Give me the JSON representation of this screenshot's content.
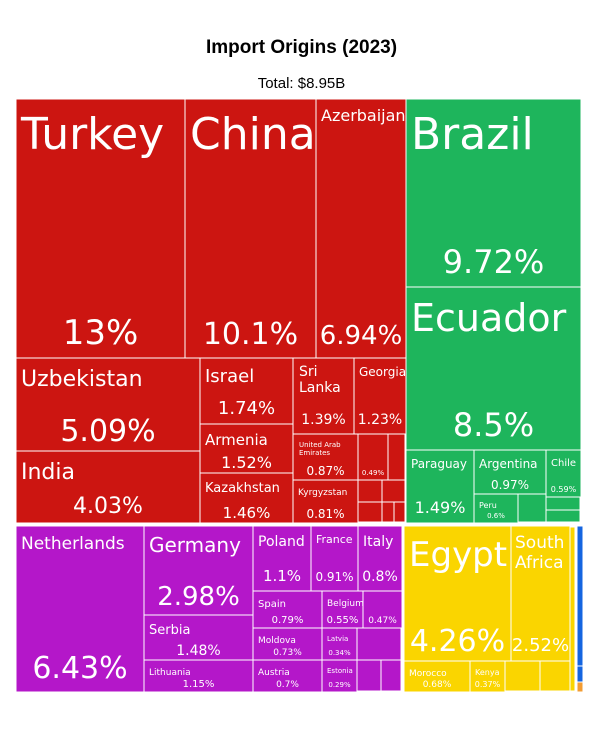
{
  "chart_data": {
    "type": "treemap",
    "title": "Import Origins (2023)",
    "subtitle": "Total: $8.95B",
    "colors": {
      "asia": "#cc1511",
      "south_america": "#1eb55c",
      "europe": "#b417c9",
      "africa": "#fad500",
      "north_america": "#1565e0",
      "oceania": "#f39c32"
    },
    "legend_icons": [
      {
        "name": "asia-icon",
        "color": "#cc1511"
      },
      {
        "name": "south-america-icon",
        "color": "#1eb55c"
      },
      {
        "name": "europe-icon",
        "color": "#b417c9"
      },
      {
        "name": "africa-icon",
        "color": "#fad500"
      },
      {
        "name": "north-america-icon",
        "color": "#1565e0"
      },
      {
        "name": "oceania-icon",
        "color": "#f39c32"
      }
    ],
    "items": [
      {
        "name": "Turkey",
        "value": "13%",
        "group": "asia"
      },
      {
        "name": "China",
        "value": "10.1%",
        "group": "asia"
      },
      {
        "name": "Azerbaijan",
        "value": "6.94%",
        "group": "asia"
      },
      {
        "name": "Uzbekistan",
        "value": "5.09%",
        "group": "asia"
      },
      {
        "name": "India",
        "value": "4.03%",
        "group": "asia"
      },
      {
        "name": "Israel",
        "value": "1.74%",
        "group": "asia"
      },
      {
        "name": "Armenia",
        "value": "1.52%",
        "group": "asia"
      },
      {
        "name": "Kazakhstan",
        "value": "1.46%",
        "group": "asia"
      },
      {
        "name": "Sri Lanka",
        "value": "1.39%",
        "group": "asia"
      },
      {
        "name": "Georgia",
        "value": "1.23%",
        "group": "asia"
      },
      {
        "name": "United Arab Emirates",
        "value": "0.87%",
        "group": "asia"
      },
      {
        "name": "Kyrgyzstan",
        "value": "0.81%",
        "group": "asia"
      },
      {
        "name": "",
        "value": "0.49%",
        "group": "asia"
      },
      {
        "name": "Brazil",
        "value": "9.72%",
        "group": "south_america"
      },
      {
        "name": "Ecuador",
        "value": "8.5%",
        "group": "south_america"
      },
      {
        "name": "Paraguay",
        "value": "1.49%",
        "group": "south_america"
      },
      {
        "name": "Argentina",
        "value": "0.97%",
        "group": "south_america"
      },
      {
        "name": "Chile",
        "value": "0.59%",
        "group": "south_america"
      },
      {
        "name": "Peru",
        "value": "0.6%",
        "group": "south_america"
      },
      {
        "name": "Netherlands",
        "value": "6.43%",
        "group": "europe"
      },
      {
        "name": "Germany",
        "value": "2.98%",
        "group": "europe"
      },
      {
        "name": "Serbia",
        "value": "1.48%",
        "group": "europe"
      },
      {
        "name": "Lithuania",
        "value": "1.15%",
        "group": "europe"
      },
      {
        "name": "Poland",
        "value": "1.1%",
        "group": "europe"
      },
      {
        "name": "France",
        "value": "0.91%",
        "group": "europe"
      },
      {
        "name": "Italy",
        "value": "0.8%",
        "group": "europe"
      },
      {
        "name": "Spain",
        "value": "0.79%",
        "group": "europe"
      },
      {
        "name": "Belgium",
        "value": "0.55%",
        "group": "europe"
      },
      {
        "name": "",
        "value": "0.47%",
        "group": "europe"
      },
      {
        "name": "Moldova",
        "value": "0.73%",
        "group": "europe"
      },
      {
        "name": "Austria",
        "value": "0.7%",
        "group": "europe"
      },
      {
        "name": "Latvia",
        "value": "0.34%",
        "group": "europe"
      },
      {
        "name": "Estonia",
        "value": "0.29%",
        "group": "europe"
      },
      {
        "name": "Egypt",
        "value": "4.26%",
        "group": "africa"
      },
      {
        "name": "South Africa",
        "value": "2.52%",
        "group": "africa"
      },
      {
        "name": "Morocco",
        "value": "0.68%",
        "group": "africa"
      },
      {
        "name": "Kenya",
        "value": "0.37%",
        "group": "africa"
      }
    ]
  }
}
